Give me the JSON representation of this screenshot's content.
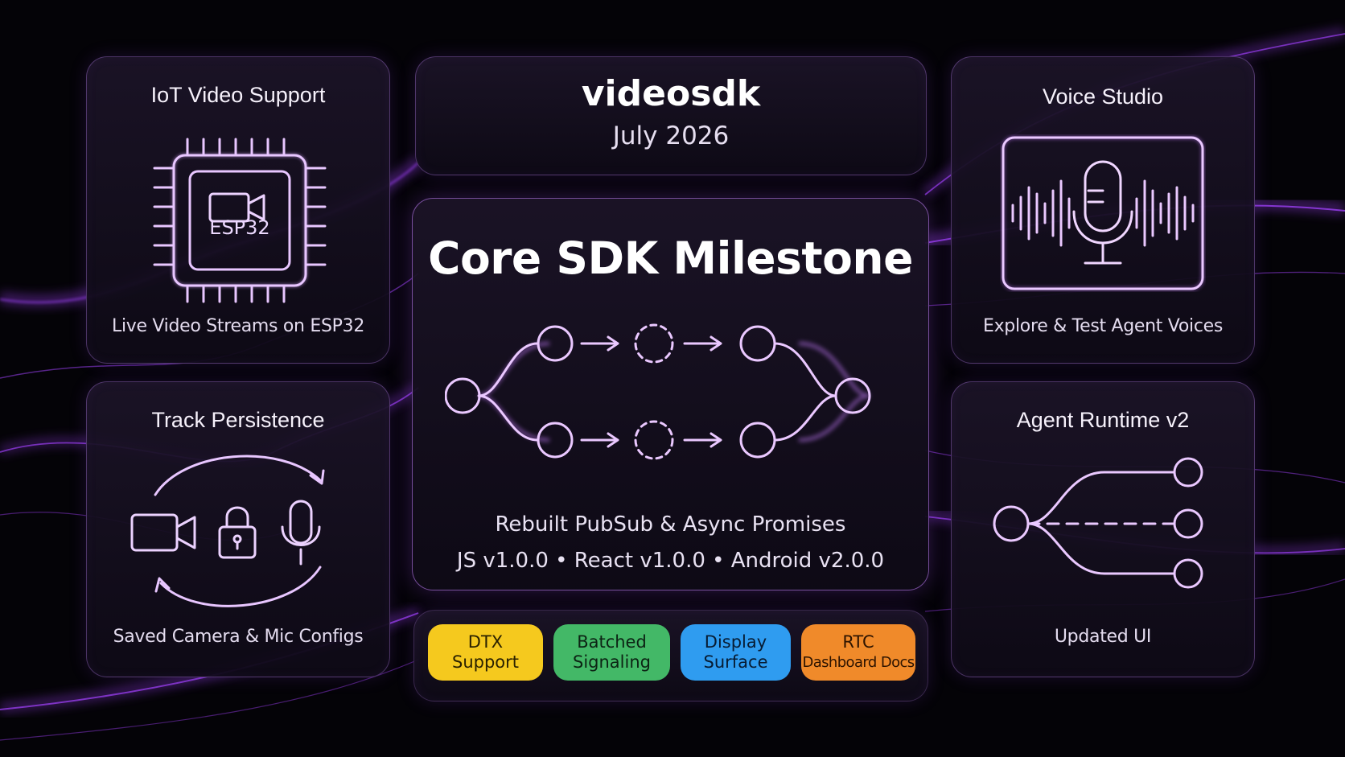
{
  "colors": {
    "background": "#040307",
    "glow": "#a855f7",
    "stroke": "#e2b6ff",
    "pill_yellow": "#f5c91e",
    "pill_green": "#43b867",
    "pill_blue": "#2f9cf0",
    "pill_orange": "#f08a2a"
  },
  "header": {
    "brand": "videosdk",
    "date": "July 2026"
  },
  "iot": {
    "title": "IoT Video Support",
    "chip_label": "ESP32",
    "caption": "Live Video Streams on ESP32",
    "icons": [
      "chip-icon",
      "video-camera-icon"
    ]
  },
  "track": {
    "title": "Track Persistence",
    "caption": "Saved Camera & Mic Configs",
    "icons": [
      "video-camera-icon",
      "lock-icon",
      "microphone-icon",
      "cycle-arrows-icon"
    ]
  },
  "voice": {
    "title": "Voice Studio",
    "caption": "Explore & Test Agent Voices",
    "icons": [
      "microphone-icon",
      "waveform-icon"
    ]
  },
  "agent": {
    "title": "Agent Runtime v2",
    "caption": "Updated UI",
    "icons": [
      "branch-nodes-icon"
    ]
  },
  "core": {
    "title": "Core SDK Milestone",
    "line1": "Rebuilt PubSub & Async Promises",
    "line2": "JS v1.0.0 • React v1.0.0 • Android v2.0.0",
    "icons": [
      "pipeline-graph-icon"
    ]
  },
  "features": [
    {
      "line1": "DTX",
      "line2": "Support",
      "color": "#f5c91e",
      "text_color": "#2a2100"
    },
    {
      "line1": "Batched",
      "line2": "Signaling",
      "color": "#43b867",
      "text_color": "#0c2314"
    },
    {
      "line1": "Display",
      "line2": "Surface",
      "color": "#2f9cf0",
      "text_color": "#071c33"
    },
    {
      "line1": "RTC",
      "line2": "Dashboard Docs",
      "color": "#f08a2a",
      "text_color": "#2e1400"
    }
  ]
}
